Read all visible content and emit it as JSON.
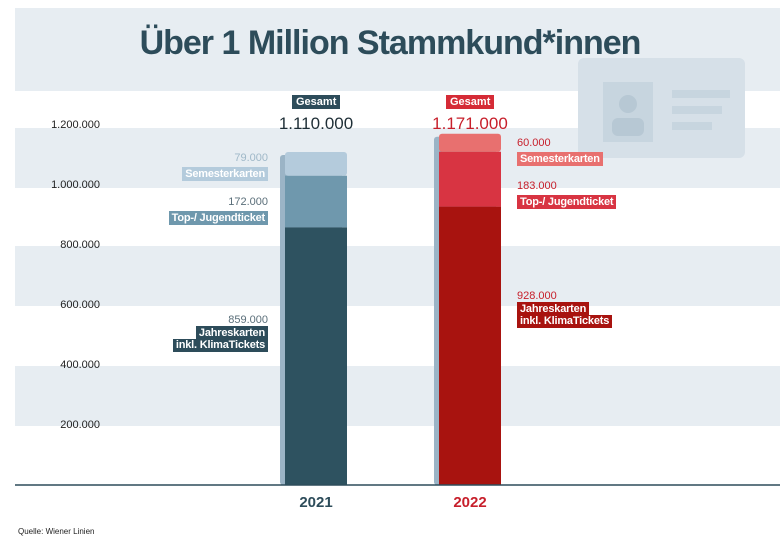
{
  "title": "Über 1 Million Stammkund*innen",
  "source": "Quelle: Wiener Linien",
  "colors": {
    "band": "#e7edf2",
    "axis": "#2d4c5a",
    "title": "#2d4c5a",
    "y2021": {
      "jahres": "#2e5260",
      "top": "#6f98ad",
      "semester": "#b4cbdc",
      "shadow": "#9bb4c6",
      "text": "#2d4c5a",
      "tag": "#2d4c5a"
    },
    "y2022": {
      "jahres": "#a8130f",
      "top": "#d83442",
      "semester": "#e8706f",
      "shadow": "#9bb4c6",
      "text": "#c71f2b",
      "tag": "#d52b36"
    }
  },
  "chart_data": {
    "type": "bar",
    "stacked": true,
    "title": "Über 1 Million Stammkund*innen",
    "categories": [
      "2021",
      "2022"
    ],
    "ylim": [
      0,
      1200000
    ],
    "yticks": [
      "200.000",
      "400.000",
      "600.000",
      "800.000",
      "1.000.000",
      "1.200.000"
    ],
    "ytick_values": [
      200000,
      400000,
      600000,
      800000,
      1000000,
      1200000
    ],
    "total_tag": "Gesamt",
    "totals": [
      1110000,
      1171000
    ],
    "totals_labels": [
      "1.110.000",
      "1.171.000"
    ],
    "series": [
      {
        "name": "Jahreskarten inkl. KlimaTickets",
        "values": [
          859000,
          928000
        ],
        "labels": [
          "859.000",
          "928.000"
        ],
        "line1": "Jahreskarten",
        "line2": "inkl. KlimaTickets"
      },
      {
        "name": "Top-/ Jugendticket",
        "values": [
          172000,
          183000
        ],
        "labels": [
          "172.000",
          "183.000"
        ],
        "line1": "Top-/ Jugendticket"
      },
      {
        "name": "Semesterkarten",
        "values": [
          79000,
          60000
        ],
        "labels": [
          "79.000",
          "60.000"
        ],
        "line1": "Semesterkarten"
      }
    ]
  }
}
